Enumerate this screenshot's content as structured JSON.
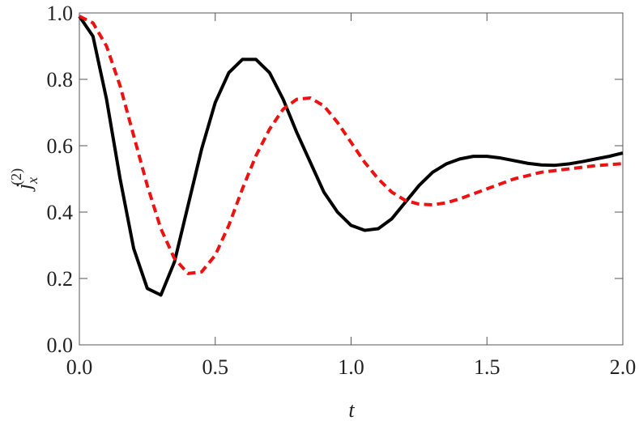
{
  "chart_data": {
    "type": "line",
    "xlabel": "t",
    "ylabel": {
      "base": "j",
      "sub": "x",
      "sup": "(2)"
    },
    "x": [
      0,
      0.05,
      0.1,
      0.15,
      0.2,
      0.25,
      0.3,
      0.35,
      0.4,
      0.45,
      0.5,
      0.55,
      0.6,
      0.65,
      0.7,
      0.75,
      0.8,
      0.85,
      0.9,
      0.95,
      1.0,
      1.05,
      1.1,
      1.15,
      1.2,
      1.25,
      1.3,
      1.35,
      1.4,
      1.45,
      1.5,
      1.55,
      1.6,
      1.65,
      1.7,
      1.75,
      1.8,
      1.85,
      1.9,
      1.95,
      2.0
    ],
    "series": [
      {
        "color": "#000000",
        "dash": false,
        "values": [
          0.99,
          0.93,
          0.74,
          0.5,
          0.29,
          0.17,
          0.15,
          0.25,
          0.42,
          0.59,
          0.73,
          0.82,
          0.86,
          0.86,
          0.82,
          0.74,
          0.64,
          0.55,
          0.46,
          0.4,
          0.36,
          0.345,
          0.35,
          0.38,
          0.43,
          0.48,
          0.52,
          0.545,
          0.56,
          0.568,
          0.568,
          0.563,
          0.555,
          0.547,
          0.542,
          0.541,
          0.545,
          0.552,
          0.56,
          0.568,
          0.578
        ]
      },
      {
        "color": "#ee1111",
        "dash": true,
        "values": [
          0.99,
          0.97,
          0.9,
          0.78,
          0.63,
          0.48,
          0.35,
          0.26,
          0.215,
          0.22,
          0.27,
          0.36,
          0.47,
          0.57,
          0.65,
          0.71,
          0.74,
          0.744,
          0.72,
          0.67,
          0.61,
          0.55,
          0.5,
          0.46,
          0.435,
          0.424,
          0.422,
          0.428,
          0.44,
          0.455,
          0.47,
          0.485,
          0.5,
          0.51,
          0.52,
          0.525,
          0.53,
          0.535,
          0.54,
          0.543,
          0.546
        ]
      }
    ],
    "xlim": [
      0,
      2
    ],
    "ylim": [
      0,
      1
    ],
    "xticks": [
      {
        "value": 0,
        "label": "0.0"
      },
      {
        "value": 0.5,
        "label": "0.5"
      },
      {
        "value": 1,
        "label": "1.0"
      },
      {
        "value": 1.5,
        "label": "1.5"
      },
      {
        "value": 2,
        "label": "2.0"
      }
    ],
    "yticks": [
      {
        "value": 0,
        "label": "0.0"
      },
      {
        "value": 0.2,
        "label": "0.2"
      },
      {
        "value": 0.4,
        "label": "0.4"
      },
      {
        "value": 0.6,
        "label": "0.6"
      },
      {
        "value": 0.8,
        "label": "0.8"
      },
      {
        "value": 1,
        "label": "1.0"
      }
    ],
    "grid": false
  }
}
